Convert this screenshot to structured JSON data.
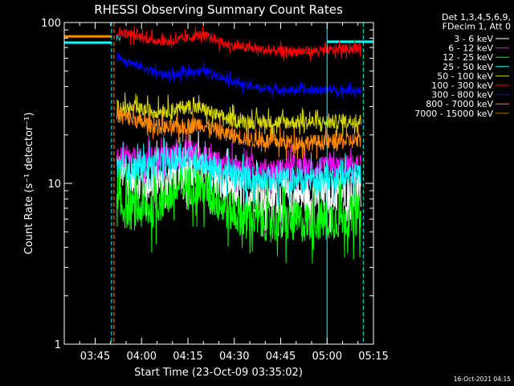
{
  "chart_data": {
    "type": "line",
    "title": "RHESSI Observing Summary Count Rates",
    "xlabel": "Start Time (23-Oct-09 03:35:02)",
    "ylabel": "Count Rate (s⁻¹ detector⁻¹)",
    "yscale": "log",
    "ylim": [
      1,
      100
    ],
    "xlim_minutes": [
      0,
      100
    ],
    "x_ticks": [
      {
        "label": "03:45",
        "min": 10
      },
      {
        "label": "04:00",
        "min": 25
      },
      {
        "label": "04:15",
        "min": 40
      },
      {
        "label": "04:30",
        "min": 55
      },
      {
        "label": "04:45",
        "min": 70
      },
      {
        "label": "05:00",
        "min": 85
      },
      {
        "label": "05:15",
        "min": 100
      }
    ],
    "y_ticks": [
      {
        "label": "1",
        "v": 1
      },
      {
        "label": "10",
        "v": 10
      },
      {
        "label": "100",
        "v": 100
      }
    ],
    "legend_header": [
      "Det 1,3,4,5,6,9,",
      "FDecim 1, Att 0"
    ],
    "series": [
      {
        "name": "3 - 6 keV",
        "color": "#ffffff",
        "points": [
          [
            17,
            13
          ],
          [
            20,
            11
          ],
          [
            25,
            10
          ],
          [
            32,
            10.5
          ],
          [
            36,
            11.5
          ],
          [
            40,
            12.5
          ],
          [
            44,
            12
          ],
          [
            50,
            10
          ],
          [
            55,
            9
          ],
          [
            62,
            8.6
          ],
          [
            70,
            8.4
          ],
          [
            80,
            8.3
          ],
          [
            90,
            8.6
          ],
          [
            96,
            8.8
          ]
        ],
        "noise": 0.12
      },
      {
        "name": "6 - 12 keV",
        "color": "#ff00ff",
        "points": [
          [
            17,
            14.5
          ],
          [
            22,
            14
          ],
          [
            30,
            14.5
          ],
          [
            36,
            15
          ],
          [
            40,
            16
          ],
          [
            44,
            15
          ],
          [
            50,
            13.5
          ],
          [
            56,
            12.5
          ],
          [
            62,
            12.3
          ],
          [
            72,
            12.2
          ],
          [
            85,
            12.5
          ],
          [
            96,
            13
          ]
        ],
        "noise": 0.07
      },
      {
        "name": "12 - 25 keV",
        "color": "#00ff00",
        "points": [
          [
            17,
            7.2
          ],
          [
            22,
            6.8
          ],
          [
            28,
            7
          ],
          [
            34,
            8.5
          ],
          [
            38,
            9.5
          ],
          [
            42,
            9.8
          ],
          [
            46,
            9
          ],
          [
            52,
            7
          ],
          [
            57,
            6.3
          ],
          [
            62,
            6
          ],
          [
            70,
            5.7
          ],
          [
            80,
            5.8
          ],
          [
            90,
            6.1
          ],
          [
            96,
            6.4
          ]
        ],
        "noise": 0.13
      },
      {
        "name": "25 - 50 keV",
        "color": "#00ffff",
        "points": [
          [
            17,
            13
          ],
          [
            22,
            12.5
          ],
          [
            30,
            13
          ],
          [
            36,
            14
          ],
          [
            40,
            15
          ],
          [
            44,
            14
          ],
          [
            50,
            12
          ],
          [
            56,
            11
          ],
          [
            62,
            10.8
          ],
          [
            72,
            10.6
          ],
          [
            85,
            10.8
          ],
          [
            96,
            11.5
          ]
        ],
        "noise": 0.08
      },
      {
        "name": "50 - 100 keV",
        "color": "#d4d400",
        "points": [
          [
            17,
            30
          ],
          [
            22,
            29
          ],
          [
            30,
            28
          ],
          [
            36,
            29
          ],
          [
            40,
            30
          ],
          [
            45,
            29
          ],
          [
            50,
            26
          ],
          [
            56,
            24.5
          ],
          [
            62,
            24
          ],
          [
            72,
            24
          ],
          [
            85,
            24
          ],
          [
            96,
            24.5
          ]
        ],
        "noise": 0.045
      },
      {
        "name": "100 - 300 keV",
        "color": "#ff0000",
        "points": [
          [
            17,
            88
          ],
          [
            22,
            84
          ],
          [
            28,
            78
          ],
          [
            34,
            76
          ],
          [
            40,
            80
          ],
          [
            44,
            84
          ],
          [
            48,
            80
          ],
          [
            52,
            73
          ],
          [
            58,
            70
          ],
          [
            66,
            67
          ],
          [
            75,
            66
          ],
          [
            85,
            67
          ],
          [
            96,
            70
          ]
        ],
        "noise": 0.03
      },
      {
        "name": "300 - 800 keV",
        "color": "#0000ff",
        "points": [
          [
            17,
            62
          ],
          [
            22,
            56
          ],
          [
            28,
            50
          ],
          [
            34,
            47
          ],
          [
            38,
            48
          ],
          [
            42,
            50
          ],
          [
            46,
            50
          ],
          [
            52,
            45
          ],
          [
            58,
            41
          ],
          [
            64,
            39
          ],
          [
            72,
            38
          ],
          [
            85,
            38
          ],
          [
            96,
            38
          ]
        ],
        "noise": 0.025
      },
      {
        "name": "800 - 7000 keV",
        "color": "#ff8800",
        "points": [
          [
            17,
            27
          ],
          [
            22,
            25
          ],
          [
            28,
            23
          ],
          [
            34,
            22
          ],
          [
            40,
            22.5
          ],
          [
            44,
            23.5
          ],
          [
            50,
            21
          ],
          [
            56,
            19.5
          ],
          [
            62,
            18.5
          ],
          [
            72,
            18
          ],
          [
            85,
            18
          ],
          [
            96,
            18.5
          ]
        ],
        "noise": 0.05
      },
      {
        "name": "7000 - 15000 keV",
        "color": "#bb6600",
        "points": [],
        "noise": 0
      }
    ],
    "pre_segments": [
      {
        "color": "#ff8800",
        "x0": 0,
        "x1": 15.3,
        "y": 82
      },
      {
        "color": "#00ffff",
        "x0": 0,
        "x1": 15.3,
        "y": 75
      },
      {
        "color": "#00ffff",
        "x0": 85,
        "x1": 100,
        "y": 76
      }
    ],
    "vlines": [
      {
        "min": 15.3,
        "color": "#00ffff",
        "dash": true
      },
      {
        "min": 16.1,
        "color": "#ff8800",
        "dash": true
      },
      {
        "min": 85.0,
        "color": "#00ffff",
        "dash": false
      },
      {
        "min": 96.7,
        "color": "#00ffff",
        "dash": true
      }
    ],
    "annotation": "N",
    "annotation_min": 16.6,
    "annotation_v": 77,
    "footer": "16-Oct-2021 04:15"
  }
}
